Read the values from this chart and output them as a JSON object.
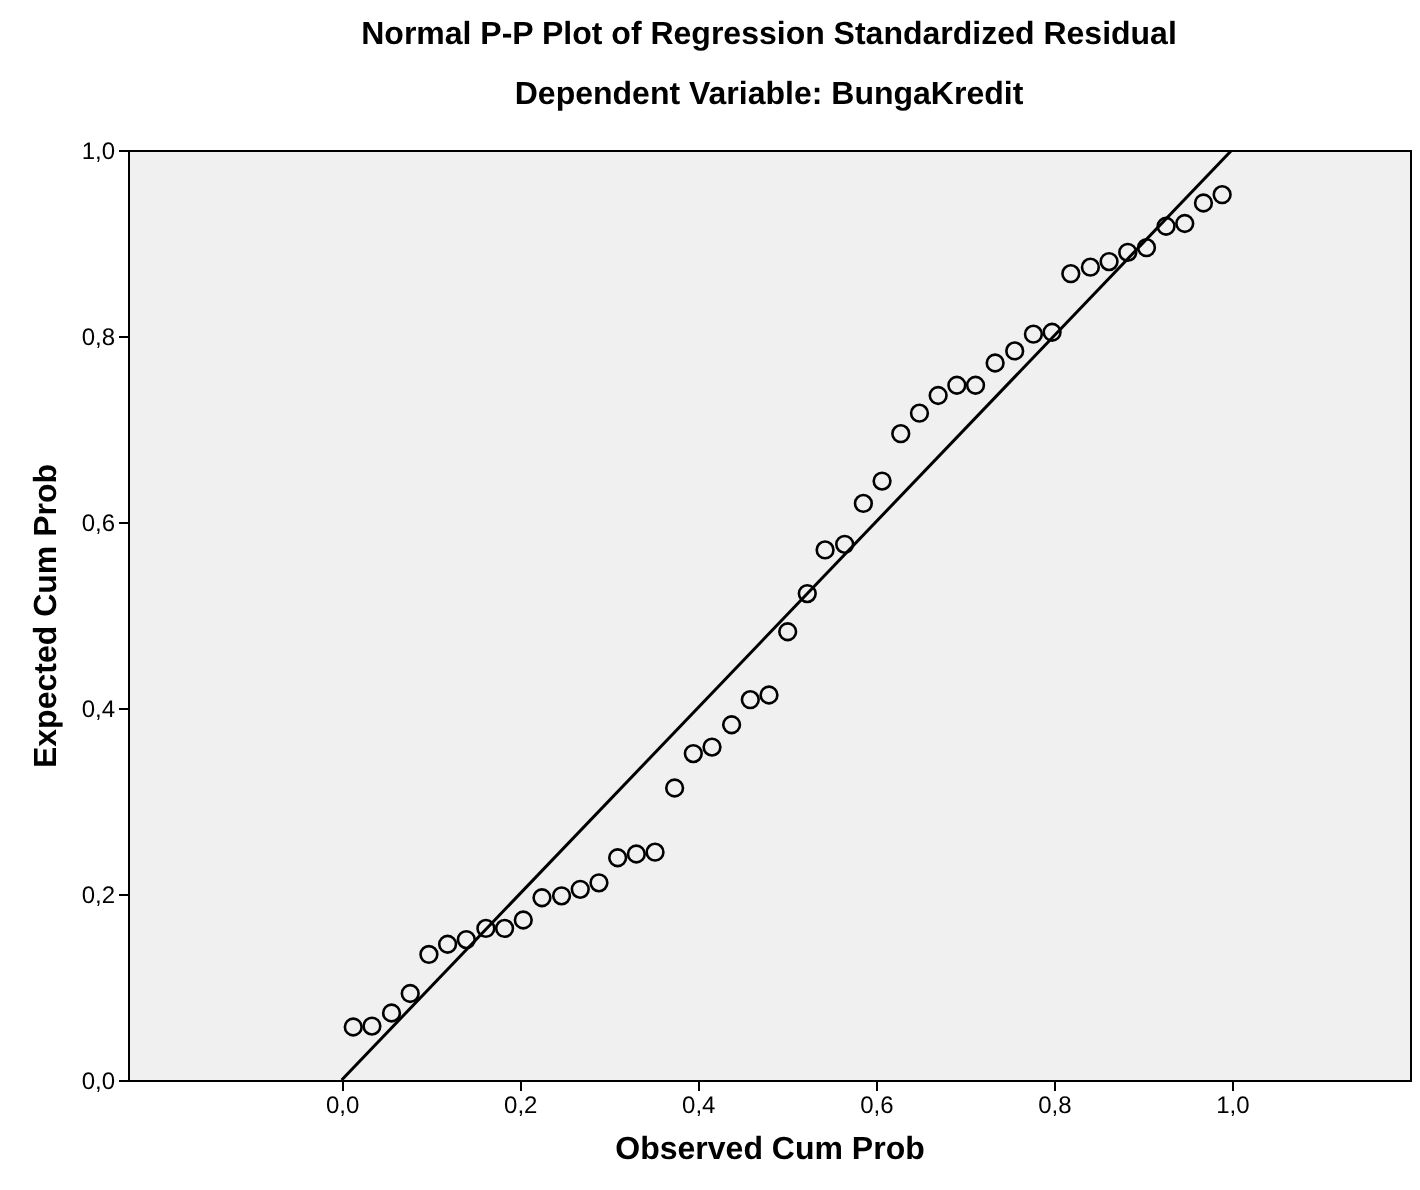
{
  "chart_data": {
    "type": "scatter",
    "title": "Normal P-P Plot of Regression Standardized Residual",
    "subtitle": "Dependent Variable: BungaKredit",
    "xlabel": "Observed Cum Prob",
    "ylabel": "Expected Cum Prob",
    "xlim": [
      -0.24,
      1.2
    ],
    "ylim": [
      0,
      1
    ],
    "xticks": [
      {
        "value": 0,
        "label": "0,0"
      },
      {
        "value": 0.2,
        "label": "0,2"
      },
      {
        "value": 0.4,
        "label": "0,4"
      },
      {
        "value": 0.6,
        "label": "0,6"
      },
      {
        "value": 0.8,
        "label": "0,8"
      },
      {
        "value": 1,
        "label": "1,0"
      }
    ],
    "yticks": [
      {
        "value": 0,
        "label": "0,0"
      },
      {
        "value": 0.2,
        "label": "0,2"
      },
      {
        "value": 0.4,
        "label": "0,4"
      },
      {
        "value": 0.6,
        "label": "0,6"
      },
      {
        "value": 0.8,
        "label": "0,8"
      },
      {
        "value": 1,
        "label": "1,0"
      }
    ],
    "grid": false,
    "series": [
      {
        "type": "scatter",
        "color": "#000000",
        "marker": "circle",
        "x": [
          0.013,
          0.034,
          0.056,
          0.077,
          0.098,
          0.119,
          0.14,
          0.162,
          0.183,
          0.204,
          0.225,
          0.247,
          0.268,
          0.289,
          0.31,
          0.331,
          0.352,
          0.374,
          0.395,
          0.416,
          0.438,
          0.459,
          0.48,
          0.501,
          0.523,
          0.543,
          0.565,
          0.586,
          0.607,
          0.628,
          0.649,
          0.67,
          0.691,
          0.712,
          0.734,
          0.756,
          0.777,
          0.798,
          0.819,
          0.841,
          0.862,
          0.883,
          0.904,
          0.926,
          0.947,
          0.968,
          0.989
        ],
        "values": [
          0.057,
          0.058,
          0.072,
          0.093,
          0.135,
          0.146,
          0.151,
          0.163,
          0.163,
          0.172,
          0.196,
          0.198,
          0.205,
          0.212,
          0.239,
          0.243,
          0.245,
          0.314,
          0.351,
          0.358,
          0.382,
          0.409,
          0.414,
          0.482,
          0.523,
          0.57,
          0.576,
          0.62,
          0.644,
          0.695,
          0.717,
          0.736,
          0.747,
          0.747,
          0.771,
          0.784,
          0.802,
          0.804,
          0.867,
          0.874,
          0.88,
          0.89,
          0.895,
          0.918,
          0.921,
          0.943,
          0.952
        ]
      },
      {
        "type": "line",
        "color": "#000000",
        "line_style": "solid",
        "x": [
          0,
          1
        ],
        "values": [
          0,
          1
        ]
      }
    ]
  }
}
